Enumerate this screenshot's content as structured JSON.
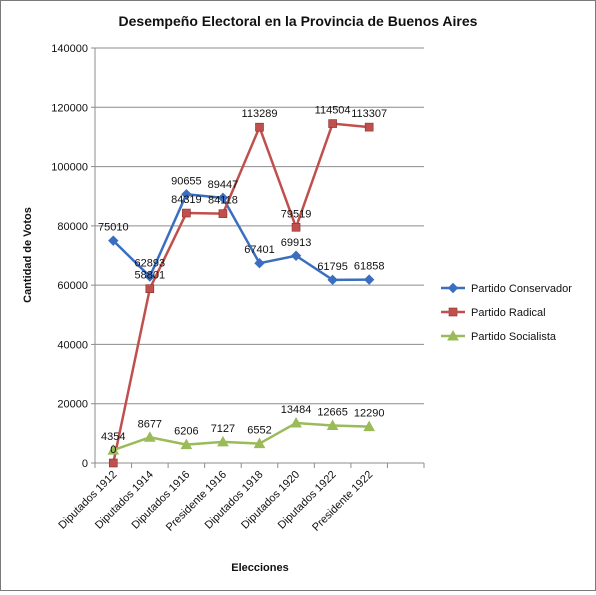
{
  "chart_data": {
    "type": "line",
    "title": "Desempeño Electoral en la Provincia de Buenos Aires",
    "xlabel": "Elecciones",
    "ylabel": "Cantidad de Votos",
    "ylim": [
      0,
      140000
    ],
    "yticks": [
      "0",
      "20000",
      "40000",
      "60000",
      "80000",
      "100000",
      "120000",
      "140000"
    ],
    "grid": "horizontal",
    "legend_position": "right",
    "categories": [
      "Diputados 1912",
      "Diputados 1914",
      "Diputados 1916",
      "Presidente 1916",
      "Diputados 1918",
      "Diputados 1920",
      "Diputados 1922",
      "Presidente 1922"
    ],
    "series": [
      {
        "name": "Partido Conservador",
        "color": "#3a6fc0",
        "marker": "diamond",
        "values": [
          75010,
          62893,
          90655,
          89447,
          67401,
          69913,
          61795,
          61858
        ]
      },
      {
        "name": "Partido Radical",
        "color": "#c0504d",
        "marker": "square",
        "values": [
          0,
          58801,
          84319,
          84118,
          113289,
          79519,
          114504,
          113307
        ]
      },
      {
        "name": "Partido Socialista",
        "color": "#9bbb59",
        "marker": "triangle",
        "values": [
          4354,
          8677,
          6206,
          7127,
          6552,
          13484,
          12665,
          12290
        ]
      }
    ]
  }
}
